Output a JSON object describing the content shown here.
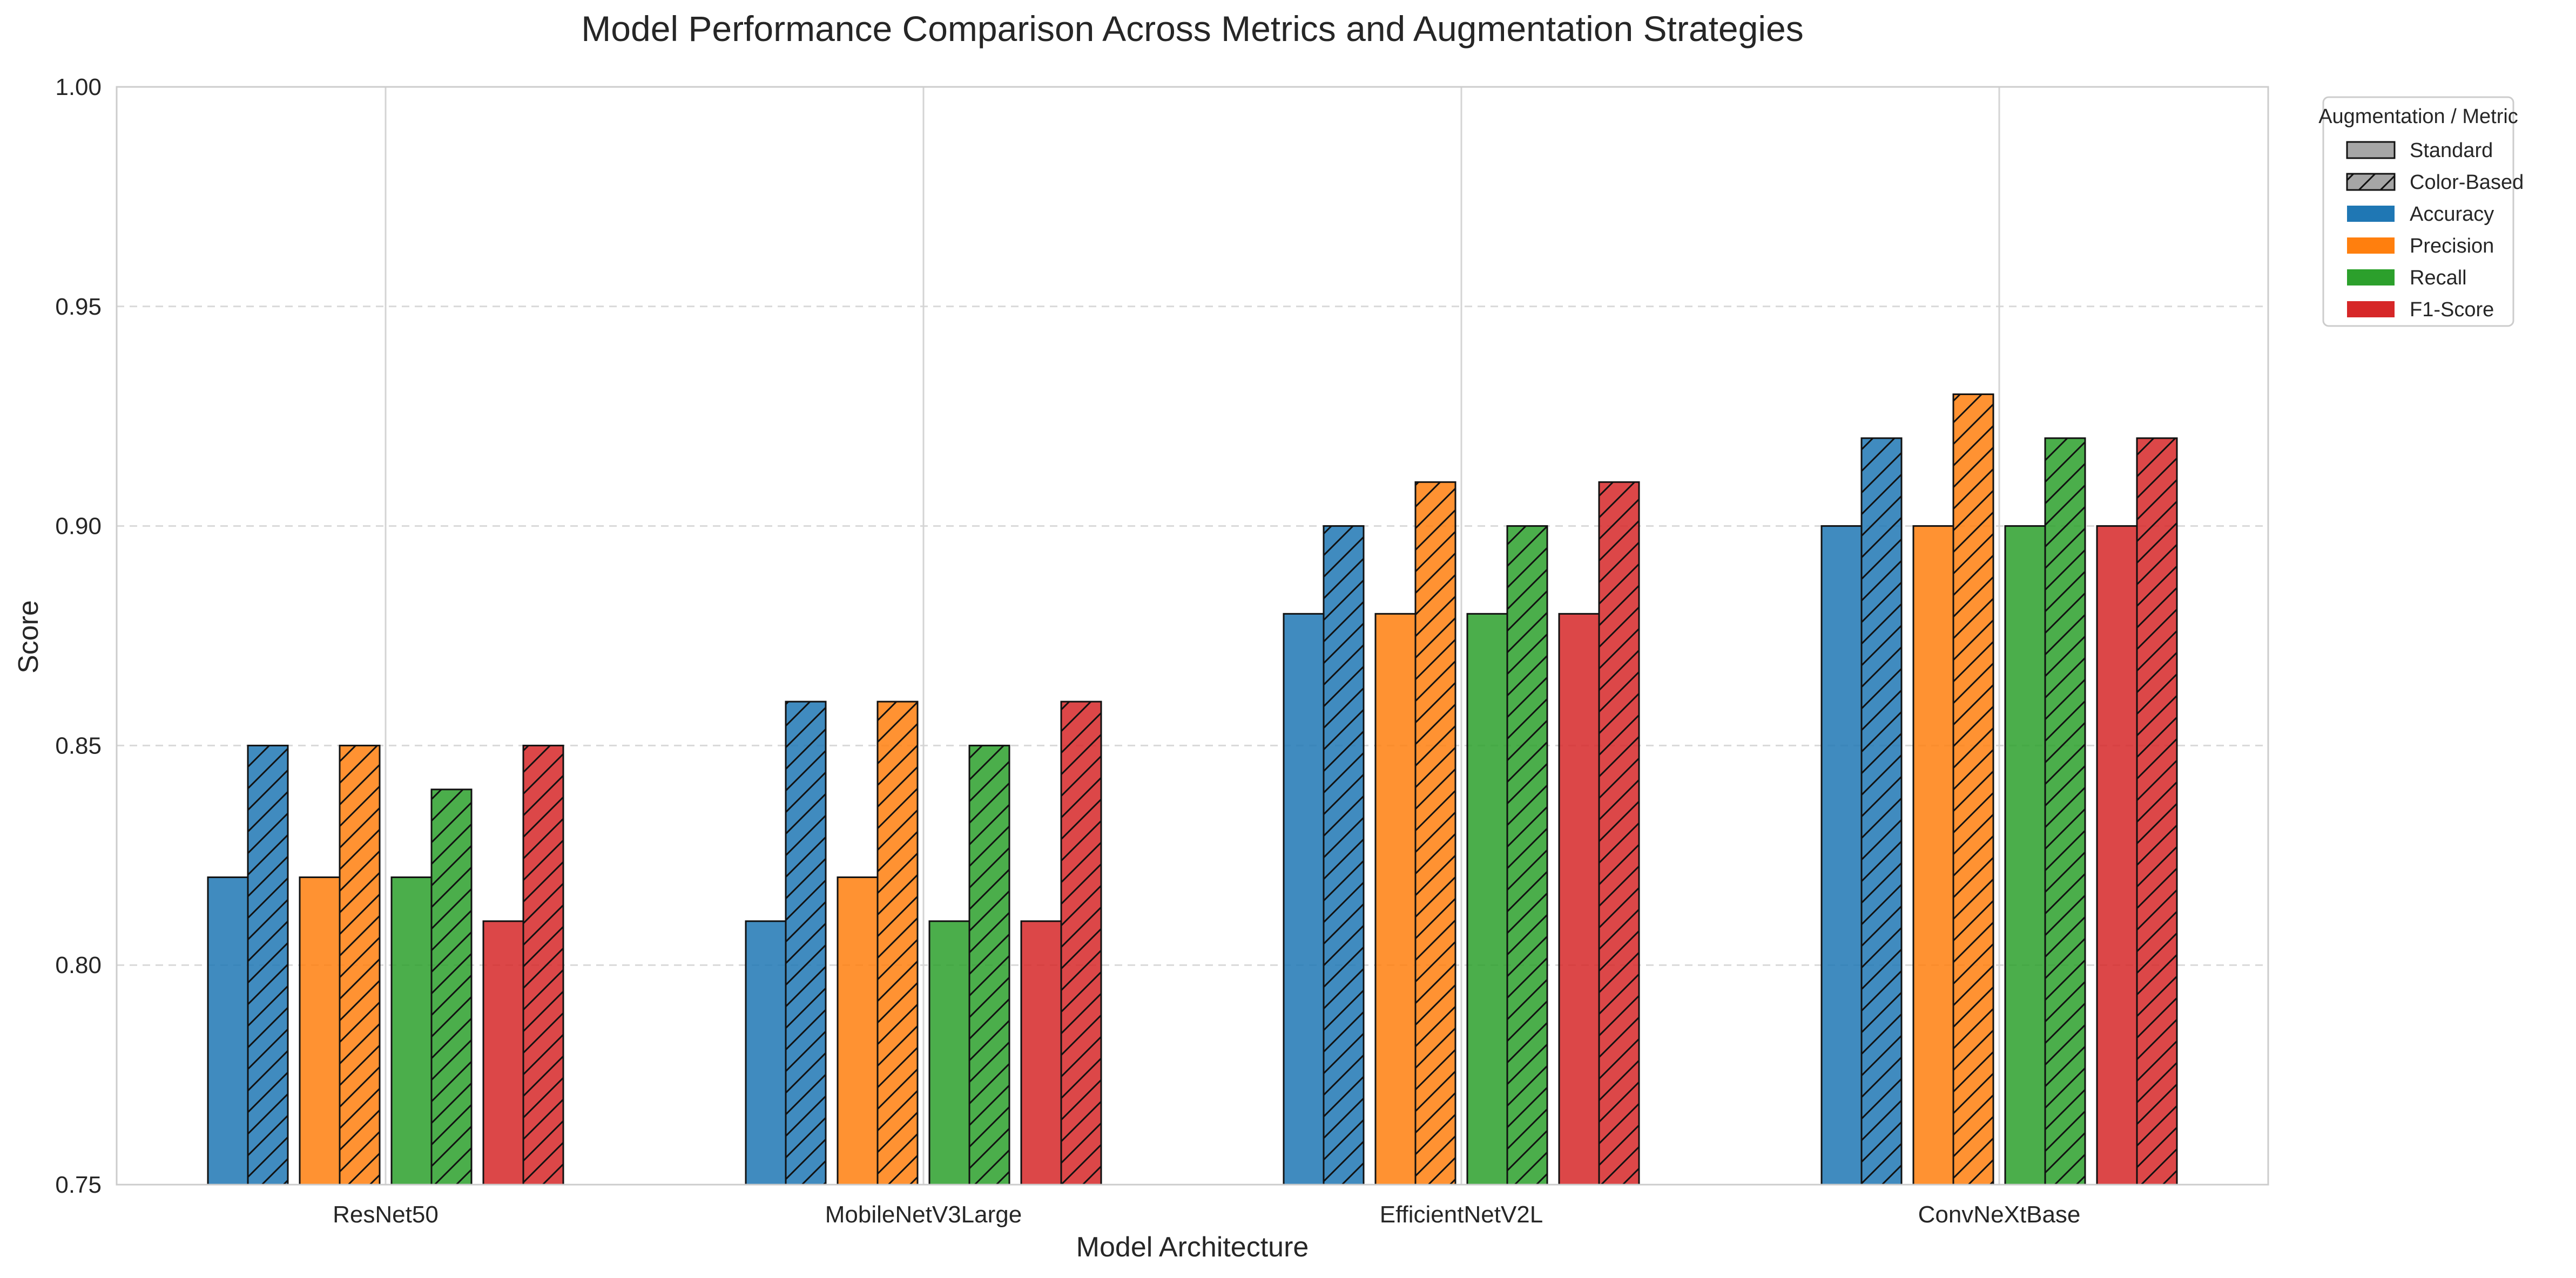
{
  "chart_data": {
    "type": "bar",
    "title": "Model Performance Comparison Across Metrics and Augmentation Strategies",
    "xlabel": "Model Architecture",
    "ylabel": "Score",
    "ylim": [
      0.75,
      1.0
    ],
    "yticks": [
      "0.75",
      "0.80",
      "0.85",
      "0.90",
      "0.95",
      "1.00"
    ],
    "grid": true,
    "categories": [
      "ResNet50",
      "MobileNetV3Large",
      "EfficientNetV2L",
      "ConvNeXtBase"
    ],
    "series": [
      {
        "name": "Accuracy",
        "color": "#1f77b4",
        "standard": [
          0.82,
          0.81,
          0.88,
          0.9
        ],
        "color_based": [
          0.85,
          0.86,
          0.9,
          0.92
        ]
      },
      {
        "name": "Precision",
        "color": "#ff7f0e",
        "standard": [
          0.82,
          0.82,
          0.88,
          0.9
        ],
        "color_based": [
          0.85,
          0.86,
          0.91,
          0.93
        ]
      },
      {
        "name": "Recall",
        "color": "#2ca02c",
        "standard": [
          0.82,
          0.81,
          0.88,
          0.9
        ],
        "color_based": [
          0.84,
          0.85,
          0.9,
          0.92
        ]
      },
      {
        "name": "F1-Score",
        "color": "#d62728",
        "standard": [
          0.81,
          0.81,
          0.88,
          0.9
        ],
        "color_based": [
          0.85,
          0.86,
          0.91,
          0.92
        ]
      }
    ],
    "legend": {
      "title": "Augmentation / Metric",
      "placement": "outside-top-right",
      "augmentations": [
        "Standard",
        "Color-Based"
      ]
    }
  }
}
